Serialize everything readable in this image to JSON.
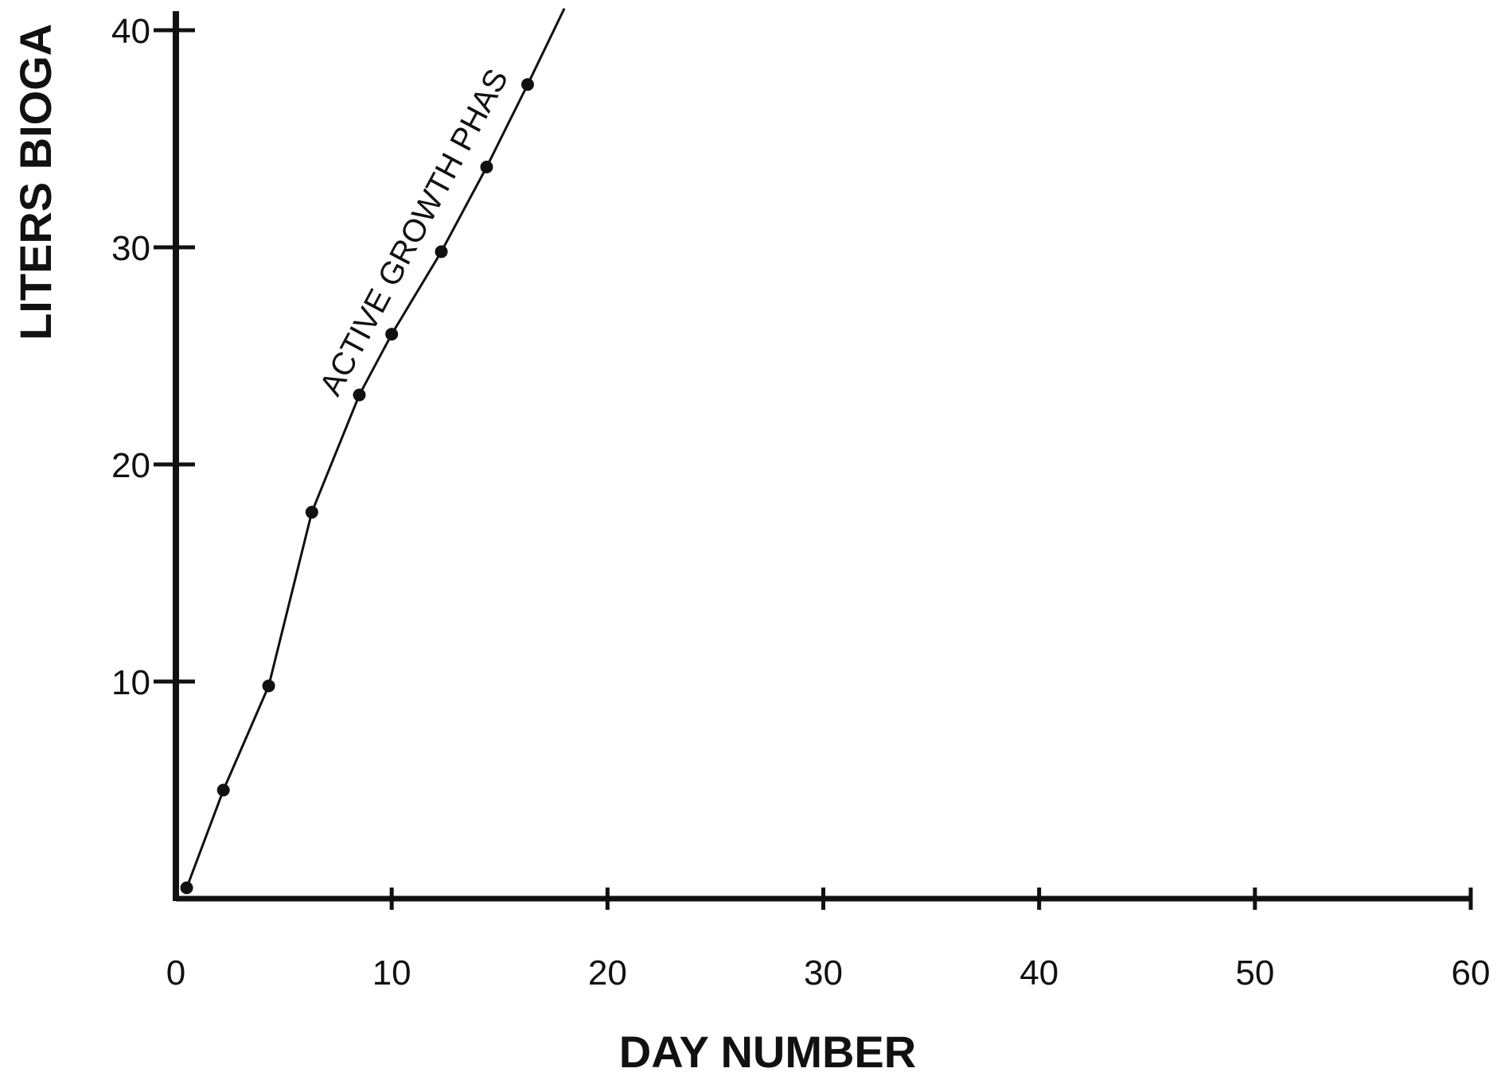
{
  "chart_data": {
    "type": "line",
    "title": "",
    "xlabel": "DAY NUMBER",
    "ylabel": "LITERS BIOGA",
    "xlim": [
      0,
      60
    ],
    "ylim": [
      0,
      40
    ],
    "x_ticks": [
      0,
      10,
      20,
      30,
      40,
      50,
      60
    ],
    "x_tick_labels": [
      "0",
      "10",
      "20",
      "30",
      "40",
      "50",
      "60"
    ],
    "y_ticks": [
      10,
      20,
      30,
      40
    ],
    "y_tick_labels": [
      "10",
      "20",
      "30",
      "40"
    ],
    "grid": false,
    "legend": "none",
    "series": [
      {
        "x": [
          0.5,
          2.2,
          4.3,
          6.3,
          8.5,
          10.0,
          12.3,
          14.4,
          16.3
        ],
        "y": [
          0.5,
          5.0,
          9.8,
          17.8,
          23.2,
          26.0,
          29.8,
          33.7,
          37.5
        ]
      }
    ],
    "line_extends_to": {
      "x": 18.0,
      "y": 41.0
    },
    "annotations": [
      {
        "text": "ACTIVE GROWTH PHAS",
        "x": 7.5,
        "y": 23.5,
        "angle_deg": -62
      }
    ],
    "colors": {
      "line": "#111111",
      "axis": "#111111"
    }
  }
}
